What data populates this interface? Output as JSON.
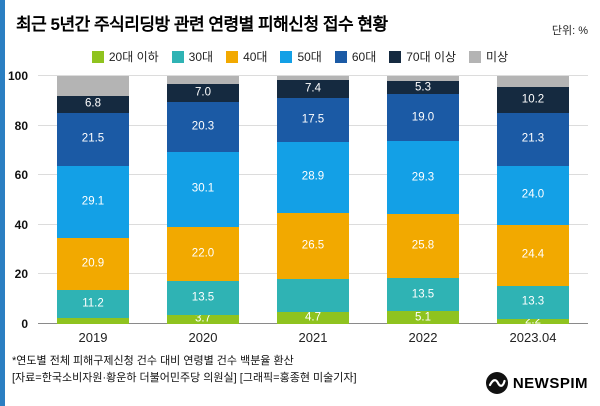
{
  "title": "최근 5년간 주식리딩방 관련 연령별 피해신청 접수 현황",
  "unit_label": "단위: %",
  "footnotes": {
    "note1": "*연도별 전체 피해구제신청 건수 대비 연령별 건수 백분율 환산",
    "note2": "[자료=한국소비자원·황운하 더불어민주당 의원실] [그래픽=홍종현 미술기자]"
  },
  "logo": {
    "text": "NEWSPIM"
  },
  "chart_data": {
    "type": "bar",
    "stacked": true,
    "title": "최근 5년간 주식리딩방 관련 연령별 피해신청 접수 현황",
    "unit": "%",
    "categories": [
      "2019",
      "2020",
      "2021",
      "2022",
      "2023.04"
    ],
    "ylim": [
      0,
      100
    ],
    "yticks": [
      0,
      20,
      40,
      60,
      80,
      100
    ],
    "grid": true,
    "legend_position": "top",
    "series": [
      {
        "name": "20대 이하",
        "color": "#8fc31f",
        "values": [
          2.5,
          3.7,
          4.7,
          5.1,
          2.2
        ],
        "labels": [
          "",
          "3.7",
          "4.7",
          "5.1",
          "2.2"
        ]
      },
      {
        "name": "30대",
        "color": "#2fb3b4",
        "values": [
          11.2,
          13.5,
          13.5,
          13.5,
          13.3
        ],
        "labels": [
          "11.2",
          "13.5",
          "",
          "13.5",
          "13.3"
        ]
      },
      {
        "name": "40대",
        "color": "#f2a900",
        "values": [
          20.9,
          22.0,
          26.5,
          25.8,
          24.4
        ],
        "labels": [
          "20.9",
          "22.0",
          "26.5",
          "25.8",
          "24.4"
        ]
      },
      {
        "name": "50대",
        "color": "#13a0e6",
        "values": [
          29.1,
          30.1,
          28.9,
          29.3,
          24.0
        ],
        "labels": [
          "29.1",
          "30.1",
          "28.9",
          "29.3",
          "24.0"
        ]
      },
      {
        "name": "60대",
        "color": "#1b5aa5",
        "values": [
          21.5,
          20.3,
          17.5,
          19.0,
          21.3
        ],
        "labels": [
          "21.5",
          "20.3",
          "17.5",
          "19.0",
          "21.3"
        ]
      },
      {
        "name": "70대 이상",
        "color": "#152a40",
        "values": [
          6.8,
          7.0,
          7.4,
          5.3,
          10.2
        ],
        "labels": [
          "6.8",
          "7.0",
          "7.4",
          "5.3",
          "10.2"
        ]
      },
      {
        "name": "미상",
        "color": "#b4b4b4",
        "values": [
          8.0,
          3.4,
          1.5,
          2.0,
          4.6
        ],
        "labels": [
          "",
          "",
          "",
          "",
          ""
        ]
      }
    ]
  }
}
